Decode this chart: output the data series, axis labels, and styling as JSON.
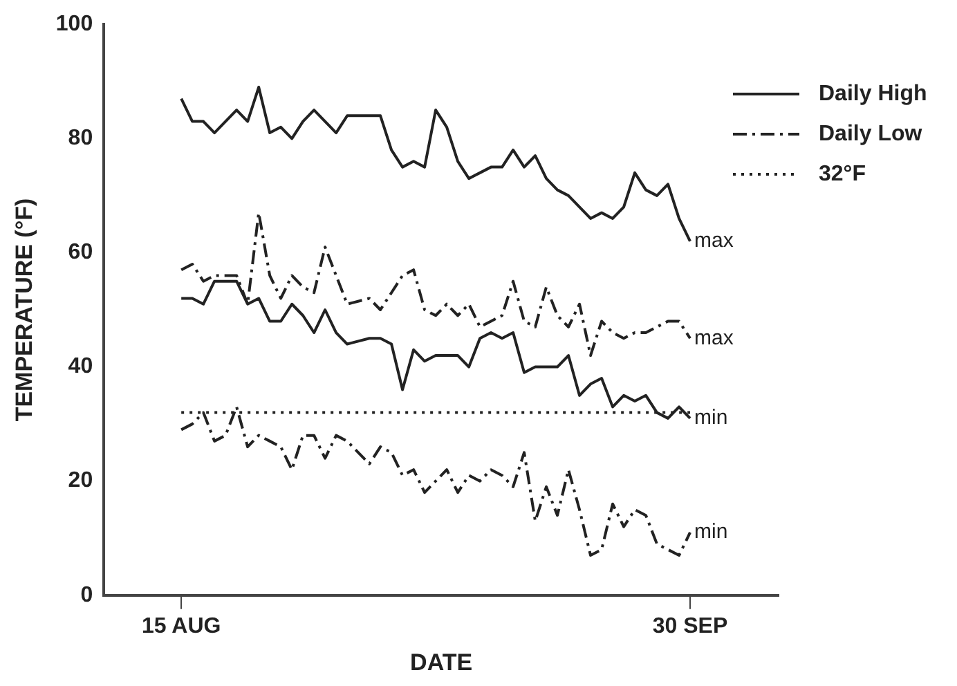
{
  "chart_data": {
    "type": "line",
    "xlabel": "DATE",
    "ylabel": "TEMPERATURE (°F)",
    "x": [
      "--08-15",
      "--08-16",
      "--08-17",
      "--08-18",
      "--08-19",
      "--08-20",
      "--08-21",
      "--08-22",
      "--08-23",
      "--08-24",
      "--08-25",
      "--08-26",
      "--08-27",
      "--08-28",
      "--08-29",
      "--08-30",
      "--09-01",
      "--09-02",
      "--09-03",
      "--09-04",
      "--09-05",
      "--09-06",
      "--09-07",
      "--09-08",
      "--09-09",
      "--09-10",
      "--09-11",
      "--09-12",
      "--09-13",
      "--09-14",
      "--09-15",
      "--09-16",
      "--09-17",
      "--09-18",
      "--09-19",
      "--09-20",
      "--09-21",
      "--09-22",
      "--09-23",
      "--09-24",
      "--09-25",
      "--09-26",
      "--09-27",
      "--09-28",
      "--09-29",
      "--09-30"
    ],
    "xlim": [
      "--08-08",
      "--10-08"
    ],
    "xticks": [
      {
        "value": "--08-15",
        "label": "15 AUG"
      },
      {
        "value": "--09-30",
        "label": "30 SEP"
      }
    ],
    "ylim": [
      0,
      100
    ],
    "yticks": [
      0,
      20,
      40,
      60,
      80,
      100
    ],
    "grid": false,
    "legend": "top right",
    "marker": "none",
    "series": [
      {
        "name": "Daily High",
        "color": "#222222",
        "line_style": "solid",
        "values": [
          87,
          83,
          83,
          81,
          83,
          85,
          83,
          89,
          81,
          82,
          80,
          83,
          85,
          83,
          81,
          84,
          84,
          84,
          78,
          75,
          76,
          75,
          85,
          82,
          76,
          73,
          74,
          75,
          75,
          78,
          75,
          77,
          73,
          71,
          70,
          68,
          66,
          67,
          66,
          68,
          74,
          71,
          70,
          72,
          66,
          62
        ]
      },
      {
        "color": "#222222",
        "line_style": "solid",
        "values": [
          52,
          52,
          51,
          55,
          55,
          55,
          51,
          52,
          48,
          48,
          51,
          49,
          46,
          50,
          46,
          44,
          45,
          45,
          44,
          36,
          43,
          41,
          42,
          42,
          42,
          40,
          45,
          46,
          45,
          46,
          39,
          40,
          40,
          40,
          42,
          35,
          37,
          38,
          33,
          35,
          34,
          35,
          32,
          31,
          33,
          31
        ]
      },
      {
        "name": "Daily Low",
        "color": "#222222",
        "line_style": "dashdot",
        "values": [
          57,
          58,
          55,
          56,
          56,
          56,
          51,
          67,
          56,
          52,
          56,
          54,
          53,
          61,
          56,
          51,
          52,
          50,
          53,
          56,
          57,
          50,
          49,
          51,
          49,
          51,
          47,
          48,
          49,
          55,
          48,
          47,
          54,
          49,
          47,
          51,
          42,
          48,
          46,
          45,
          46,
          46,
          47,
          48,
          48,
          45
        ]
      },
      {
        "color": "#222222",
        "line_style": "dashdot",
        "values": [
          29,
          30,
          32,
          27,
          28,
          33,
          26,
          28,
          27,
          26,
          22,
          28,
          28,
          24,
          28,
          27,
          23,
          26,
          25,
          21,
          22,
          18,
          20,
          22,
          18,
          21,
          20,
          22,
          21,
          19,
          25,
          13,
          19,
          14,
          22,
          15,
          7,
          8,
          16,
          12,
          15,
          14,
          9,
          8,
          7,
          11
        ]
      }
    ],
    "ref_lines": [
      {
        "axis": "y",
        "value": 32,
        "label": "32°F",
        "color": "#222222",
        "line_style": "dotted"
      }
    ],
    "annotations": [
      {
        "text": "max",
        "x": "--09-30",
        "y": 62
      },
      {
        "text": "max",
        "x": "--09-30",
        "y": 45
      },
      {
        "text": "min",
        "x": "--09-30",
        "y": 31
      },
      {
        "text": "min",
        "x": "--09-30",
        "y": 11
      }
    ]
  }
}
